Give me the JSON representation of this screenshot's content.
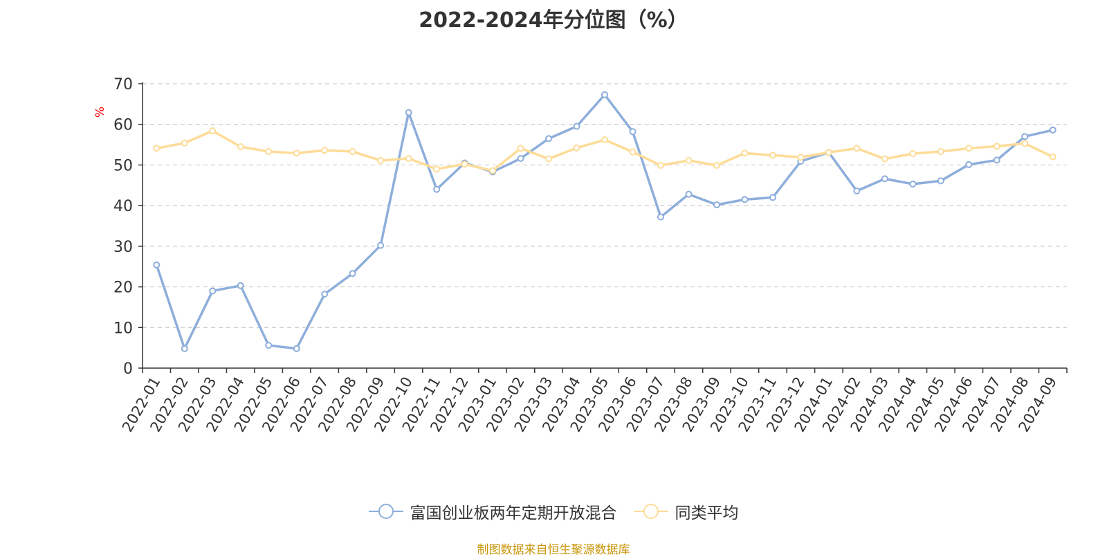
{
  "source_text": "制图数据来自恒生聚源数据库",
  "colors": {
    "series1": "#8eaedb",
    "series2": "#fddc98",
    "axis": "#333333",
    "grid": "#cccccc",
    "ylabel": "#ff0000",
    "source": "#c8960a"
  },
  "chart_data": {
    "type": "line",
    "title": "2022-2024年分位图（%）",
    "ylabel": "%",
    "xlabel": "",
    "ylim": [
      0,
      70
    ],
    "yticks": [
      "0",
      "10",
      "20",
      "30",
      "40",
      "50",
      "60",
      "70"
    ],
    "grid": true,
    "legend_position": "bottom",
    "categories": [
      "2022-01",
      "2022-02",
      "2022-03",
      "2022-04",
      "2022-05",
      "2022-06",
      "2022-07",
      "2022-08",
      "2022-09",
      "2022-10",
      "2022-11",
      "2022-12",
      "2023-01",
      "2023-02",
      "2023-03",
      "2023-04",
      "2023-05",
      "2023-06",
      "2023-07",
      "2023-08",
      "2023-09",
      "2023-10",
      "2023-11",
      "2023-12",
      "2024-01",
      "2024-02",
      "2024-03",
      "2024-04",
      "2024-05",
      "2024-06",
      "2024-07",
      "2024-08",
      "2024-09"
    ],
    "series": [
      {
        "name": "富国创业板两年定期开放混合",
        "color": "#8eaedb",
        "values": [
          25.4,
          4.8,
          19.0,
          20.3,
          5.6,
          4.8,
          18.2,
          23.3,
          30.2,
          62.9,
          44.0,
          50.5,
          48.3,
          51.6,
          56.5,
          59.5,
          67.3,
          58.2,
          37.2,
          42.8,
          40.2,
          41.5,
          42.0,
          50.9,
          53.1,
          43.6,
          46.6,
          45.3,
          46.1,
          50.1,
          51.2,
          57.0,
          58.6
        ]
      },
      {
        "name": "同类平均",
        "color": "#fddc98",
        "values": [
          54.1,
          55.4,
          58.4,
          54.5,
          53.3,
          52.9,
          53.6,
          53.3,
          51.1,
          51.6,
          49.0,
          50.2,
          48.6,
          54.1,
          51.5,
          54.2,
          56.2,
          53.2,
          49.9,
          51.1,
          49.9,
          52.9,
          52.4,
          51.9,
          53.1,
          54.1,
          51.5,
          52.8,
          53.3,
          54.1,
          54.6,
          55.3,
          52.0
        ]
      }
    ]
  }
}
